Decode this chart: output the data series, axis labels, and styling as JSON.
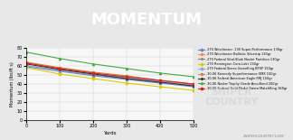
{
  "title": "MOMENTUM",
  "xlabel": "Yards",
  "ylabel": "Momentum (lbs/ft s)",
  "xlim": [
    0,
    500
  ],
  "ylim": [
    0,
    80
  ],
  "yticks": [
    0,
    10,
    20,
    30,
    40,
    50,
    60,
    70,
    80
  ],
  "xticks": [
    0,
    100,
    200,
    300,
    400,
    500
  ],
  "background_color": "#f0f0f0",
  "header_color": "#4a4a4a",
  "red_bar_color": "#cc0000",
  "series": [
    {
      "label": ".270 Winchester .130 Super-Performance 130gr",
      "color": "#6688cc",
      "marker": "s",
      "values": [
        59,
        54,
        49,
        45,
        41,
        37
      ]
    },
    {
      "label": ".270 Winchester Ballistic Silvertip 130gr",
      "color": "#ff8844",
      "marker": "o",
      "values": [
        63,
        57,
        52,
        47,
        43,
        39
      ]
    },
    {
      "label": ".270 Federal Vital-Shok Nosler Partition 130gr",
      "color": "#888888",
      "marker": "x",
      "values": [
        60,
        55,
        50,
        46,
        42,
        38
      ]
    },
    {
      "label": ".270 Remington Core-Lokt 130gr",
      "color": "#ddcc00",
      "marker": "D",
      "values": [
        58,
        51,
        46,
        41,
        37,
        33
      ]
    },
    {
      "label": ".270 Federal Sierra GameKing BTSP 150gr",
      "color": "#88aadd",
      "marker": "s",
      "values": [
        60,
        55,
        51,
        47,
        43,
        39
      ]
    },
    {
      "label": ".30-06 Kennedy Superformance GMX 150gr",
      "color": "#cc8844",
      "marker": "o",
      "values": [
        64,
        58,
        53,
        49,
        44,
        40
      ]
    },
    {
      "label": ".30-06 Federal American Eagle FMJ 150gr",
      "color": "#333333",
      "marker": "x",
      "values": [
        62,
        56,
        51,
        46,
        42,
        38
      ]
    },
    {
      "label": ".30-06 Nosler Trophy Grade AccuBond 200gr",
      "color": "#44aa44",
      "marker": "^",
      "values": [
        75,
        68,
        62,
        57,
        52,
        48
      ]
    },
    {
      "label": ".30-06 Federal Gold Medal Sierra MatchKing 168gr",
      "color": "#dd2222",
      "marker": "s",
      "values": [
        63,
        57,
        52,
        48,
        44,
        40
      ]
    }
  ],
  "watermark": "SNIPERCOUNTRY.COM",
  "title_bg": "#555555",
  "title_color": "#ffffff",
  "red_accent_color": "#cc2222"
}
